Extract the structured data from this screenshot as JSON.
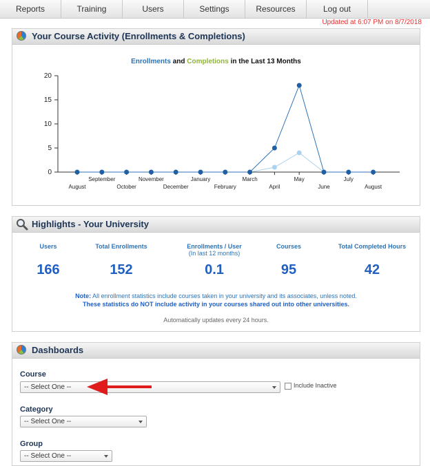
{
  "nav": {
    "items": [
      {
        "label": "Reports"
      },
      {
        "label": "Training"
      },
      {
        "label": "Users"
      },
      {
        "label": "Settings"
      },
      {
        "label": "Resources"
      },
      {
        "label": "Log out"
      }
    ]
  },
  "updated_text": "Updated at 6:07 PM on 8/7/2018",
  "colors": {
    "enrollments": "#2c73b7",
    "completions": "#a9d3ef",
    "accent_red": "#e63030"
  },
  "activity": {
    "title": "Your Course Activity (Enrollments & Completions)",
    "chart_title_enrollments": "Enrollments",
    "chart_title_and": " and ",
    "chart_title_completions": "Completions",
    "chart_title_rest": " in the Last 13 Months"
  },
  "chart_data": {
    "type": "line",
    "categories": [
      "August",
      "September",
      "October",
      "November",
      "December",
      "January",
      "February",
      "March",
      "April",
      "May",
      "June",
      "July",
      "August"
    ],
    "series": [
      {
        "name": "Enrollments",
        "values": [
          0,
          0,
          0,
          0,
          0,
          0,
          0,
          0,
          5,
          18,
          0,
          0,
          0
        ]
      },
      {
        "name": "Completions",
        "values": [
          null,
          null,
          null,
          null,
          null,
          null,
          null,
          0,
          1,
          4,
          0,
          null,
          null
        ]
      }
    ],
    "yticks": [
      0,
      5,
      10,
      15,
      20
    ],
    "ylim": [
      0,
      20
    ],
    "grid": false
  },
  "highlights": {
    "title": "Highlights - Your University",
    "stats": [
      {
        "label": "Users",
        "sub": "",
        "value": "166"
      },
      {
        "label": "Total Enrollments",
        "sub": "",
        "value": "152"
      },
      {
        "label": "Enrollments / User",
        "sub": "(In last 12 months)",
        "value": "0.1"
      },
      {
        "label": "Courses",
        "sub": "",
        "value": "95"
      },
      {
        "label": "Total Completed Hours",
        "sub": "",
        "value": "42"
      }
    ],
    "note_prefix": "Note:",
    "note_text": " All enrollment statistics include courses taken in your university and its associates, unless noted.",
    "note_bold": "These statistics do NOT include activity in your courses shared out into other universities.",
    "auto_update": "Automatically updates every 24 hours."
  },
  "dashboards": {
    "title": "Dashboards",
    "course_label": "Course",
    "course_value": "-- Select One --",
    "include_inactive": "Include Inactive",
    "category_label": "Category",
    "category_value": "-- Select One --",
    "group_label": "Group",
    "group_value": "-- Select One --"
  }
}
